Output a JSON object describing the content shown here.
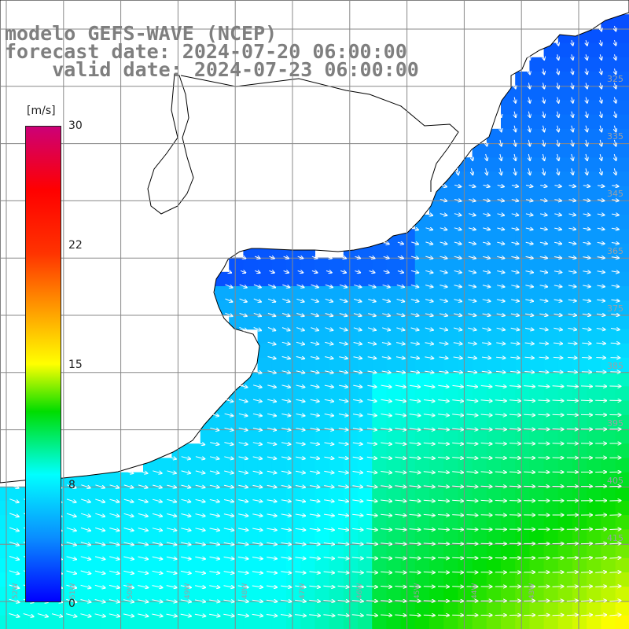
{
  "header": {
    "line1": "modelo GEFS-WAVE (NCEP)",
    "line2": "forecast date: 2024-07-20 06:00:00",
    "line3": "    valid date: 2024-07-23 06:00:00"
  },
  "colorbar": {
    "units": "[m/s]",
    "tick_labels": [
      "30",
      "22",
      "15",
      "8",
      "0"
    ],
    "tick_values": [
      30,
      22,
      15,
      8,
      0
    ],
    "range": [
      0,
      30
    ],
    "stops": [
      {
        "value": 0,
        "color": "#0000ff"
      },
      {
        "value": 4,
        "color": "#0a8cff"
      },
      {
        "value": 8,
        "color": "#00ffff"
      },
      {
        "value": 12,
        "color": "#00dd00"
      },
      {
        "value": 15,
        "color": "#ffff00"
      },
      {
        "value": 19,
        "color": "#ff8c00"
      },
      {
        "value": 22,
        "color": "#ff3300"
      },
      {
        "value": 26,
        "color": "#ff0000"
      },
      {
        "value": 30,
        "color": "#cc0077"
      }
    ]
  },
  "map": {
    "variable": "wind speed",
    "land_color": "#ffffff",
    "coastline_color": "#000000",
    "gridline_color": "#888888",
    "right_labels": [
      "325",
      "335",
      "345",
      "365",
      "375",
      "385",
      "395",
      "405",
      "415"
    ],
    "bottom_labels": [
      "52W",
      "51W",
      "50W",
      "49W",
      "48W",
      "47W",
      "46W",
      "45W",
      "44W",
      "43W"
    ]
  }
}
